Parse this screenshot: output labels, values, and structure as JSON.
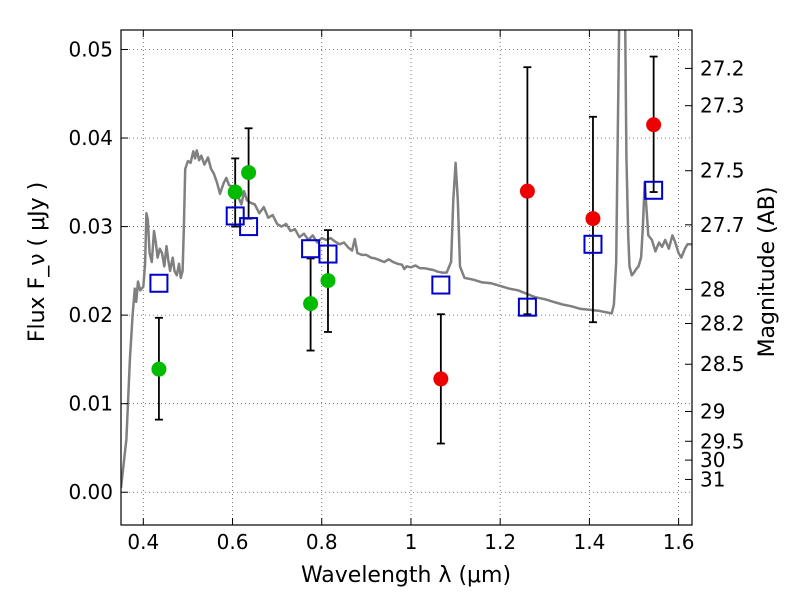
{
  "chart_data": {
    "type": "scatter",
    "xlabel": "Wavelength  λ (μm)",
    "ylabel": "Flux  F_ν  ( μJy )",
    "ylabel_right": "Magnitude (AB)",
    "xlim": [
      0.35,
      1.63
    ],
    "ylim": [
      -0.0037,
      0.0522
    ],
    "grid": true,
    "x_ticks": [
      {
        "value": 0.4,
        "label": "0.4"
      },
      {
        "value": 0.6,
        "label": "0.6"
      },
      {
        "value": 0.8,
        "label": "0.8"
      },
      {
        "value": 1.0,
        "label": "1"
      },
      {
        "value": 1.2,
        "label": "1.2"
      },
      {
        "value": 1.4,
        "label": "1.4"
      },
      {
        "value": 1.6,
        "label": "1.6"
      }
    ],
    "y_ticks": [
      {
        "value": 0.0,
        "label": "0.00"
      },
      {
        "value": 0.01,
        "label": "0.01"
      },
      {
        "value": 0.02,
        "label": "0.02"
      },
      {
        "value": 0.03,
        "label": "0.03"
      },
      {
        "value": 0.04,
        "label": "0.04"
      },
      {
        "value": 0.05,
        "label": "0.05"
      }
    ],
    "right_ticks": [
      {
        "value": 27.2,
        "label": "27.2"
      },
      {
        "value": 27.3,
        "label": "27.3"
      },
      {
        "value": 27.5,
        "label": "27.5"
      },
      {
        "value": 27.7,
        "label": "27.7"
      },
      {
        "value": 28.0,
        "label": "28"
      },
      {
        "value": 28.2,
        "label": "28.2"
      },
      {
        "value": 28.5,
        "label": "28.5"
      },
      {
        "value": 29.0,
        "label": "29"
      },
      {
        "value": 29.5,
        "label": "29.5"
      },
      {
        "value": 30.0,
        "label": "30"
      },
      {
        "value": 31.0,
        "label": "31"
      }
    ],
    "photometry": [
      {
        "x": 0.435,
        "y": 0.0139,
        "err_low": 0.0082,
        "err_high": 0.0197,
        "color": "#00bb00"
      },
      {
        "x": 0.606,
        "y": 0.0339,
        "err_low": 0.03,
        "err_high": 0.0377,
        "color": "#00bb00"
      },
      {
        "x": 0.636,
        "y": 0.0361,
        "err_low": 0.0309,
        "err_high": 0.0411,
        "color": "#00bb00"
      },
      {
        "x": 0.775,
        "y": 0.0213,
        "err_low": 0.016,
        "err_high": 0.0264,
        "color": "#00bb00"
      },
      {
        "x": 0.814,
        "y": 0.0239,
        "err_low": 0.0181,
        "err_high": 0.0296,
        "color": "#00bb00"
      },
      {
        "x": 1.067,
        "y": 0.0128,
        "err_low": 0.0055,
        "err_high": 0.0201,
        "color": "#ee0000"
      },
      {
        "x": 1.261,
        "y": 0.034,
        "err_low": 0.0201,
        "err_high": 0.048,
        "color": "#ee0000"
      },
      {
        "x": 1.408,
        "y": 0.0309,
        "err_low": 0.0192,
        "err_high": 0.0424,
        "color": "#ee0000"
      },
      {
        "x": 1.544,
        "y": 0.0415,
        "err_low": 0.0339,
        "err_high": 0.0492,
        "color": "#ee0000"
      }
    ],
    "model_points": [
      {
        "x": 0.435,
        "y": 0.0236
      },
      {
        "x": 0.606,
        "y": 0.0312
      },
      {
        "x": 0.636,
        "y": 0.03
      },
      {
        "x": 0.775,
        "y": 0.0275
      },
      {
        "x": 0.814,
        "y": 0.0269
      },
      {
        "x": 1.067,
        "y": 0.0234
      },
      {
        "x": 1.261,
        "y": 0.0209
      },
      {
        "x": 1.408,
        "y": 0.028
      },
      {
        "x": 1.544,
        "y": 0.0341
      }
    ],
    "sed_curve": [
      [
        0.35,
        0.0005
      ],
      [
        0.362,
        0.006
      ],
      [
        0.37,
        0.015
      ],
      [
        0.376,
        0.02
      ],
      [
        0.381,
        0.023
      ],
      [
        0.384,
        0.0215
      ],
      [
        0.388,
        0.0238
      ],
      [
        0.393,
        0.0228
      ],
      [
        0.4,
        0.0232
      ],
      [
        0.404,
        0.0258
      ],
      [
        0.407,
        0.0315
      ],
      [
        0.41,
        0.0308
      ],
      [
        0.414,
        0.027
      ],
      [
        0.419,
        0.026
      ],
      [
        0.424,
        0.0295
      ],
      [
        0.428,
        0.0282
      ],
      [
        0.432,
        0.0265
      ],
      [
        0.437,
        0.0275
      ],
      [
        0.442,
        0.027
      ],
      [
        0.447,
        0.0255
      ],
      [
        0.452,
        0.0278
      ],
      [
        0.456,
        0.0262
      ],
      [
        0.46,
        0.025
      ],
      [
        0.466,
        0.0265
      ],
      [
        0.47,
        0.025
      ],
      [
        0.475,
        0.0245
      ],
      [
        0.48,
        0.0258
      ],
      [
        0.484,
        0.0242
      ],
      [
        0.488,
        0.025
      ],
      [
        0.491,
        0.03
      ],
      [
        0.494,
        0.0365
      ],
      [
        0.5,
        0.0374
      ],
      [
        0.506,
        0.0372
      ],
      [
        0.512,
        0.0385
      ],
      [
        0.516,
        0.0377
      ],
      [
        0.52,
        0.0386
      ],
      [
        0.525,
        0.0375
      ],
      [
        0.53,
        0.038
      ],
      [
        0.537,
        0.037
      ],
      [
        0.545,
        0.0378
      ],
      [
        0.552,
        0.0365
      ],
      [
        0.558,
        0.036
      ],
      [
        0.565,
        0.035
      ],
      [
        0.572,
        0.0337
      ],
      [
        0.58,
        0.0349
      ],
      [
        0.586,
        0.0355
      ],
      [
        0.592,
        0.0347
      ],
      [
        0.6,
        0.0345
      ],
      [
        0.61,
        0.0337
      ],
      [
        0.62,
        0.0325
      ],
      [
        0.626,
        0.034
      ],
      [
        0.632,
        0.033
      ],
      [
        0.64,
        0.0327
      ],
      [
        0.65,
        0.0325
      ],
      [
        0.66,
        0.0315
      ],
      [
        0.67,
        0.0322
      ],
      [
        0.68,
        0.031
      ],
      [
        0.69,
        0.0313
      ],
      [
        0.7,
        0.0303
      ],
      [
        0.71,
        0.03
      ],
      [
        0.72,
        0.0303
      ],
      [
        0.73,
        0.0295
      ],
      [
        0.74,
        0.0297
      ],
      [
        0.75,
        0.0288
      ],
      [
        0.76,
        0.0292
      ],
      [
        0.77,
        0.0285
      ],
      [
        0.78,
        0.029
      ],
      [
        0.79,
        0.0282
      ],
      [
        0.8,
        0.0287
      ],
      [
        0.81,
        0.0285
      ],
      [
        0.82,
        0.0287
      ],
      [
        0.83,
        0.0283
      ],
      [
        0.84,
        0.028
      ],
      [
        0.85,
        0.0282
      ],
      [
        0.86,
        0.0276
      ],
      [
        0.868,
        0.0273
      ],
      [
        0.874,
        0.0286
      ],
      [
        0.88,
        0.027
      ],
      [
        0.89,
        0.0268
      ],
      [
        0.9,
        0.0268
      ],
      [
        0.91,
        0.0265
      ],
      [
        0.92,
        0.0264
      ],
      [
        0.93,
        0.0262
      ],
      [
        0.94,
        0.026
      ],
      [
        0.95,
        0.0263
      ],
      [
        0.96,
        0.026
      ],
      [
        0.97,
        0.0258
      ],
      [
        0.98,
        0.0257
      ],
      [
        0.985,
        0.0252
      ],
      [
        0.99,
        0.0255
      ],
      [
        1.0,
        0.0254
      ],
      [
        1.01,
        0.0256
      ],
      [
        1.02,
        0.0253
      ],
      [
        1.03,
        0.0253
      ],
      [
        1.04,
        0.0252
      ],
      [
        1.05,
        0.0251
      ],
      [
        1.06,
        0.0249
      ],
      [
        1.07,
        0.0248
      ],
      [
        1.08,
        0.0248
      ],
      [
        1.09,
        0.026
      ],
      [
        1.095,
        0.033
      ],
      [
        1.1,
        0.0372
      ],
      [
        1.105,
        0.033
      ],
      [
        1.11,
        0.0255
      ],
      [
        1.12,
        0.0242
      ],
      [
        1.14,
        0.024
      ],
      [
        1.16,
        0.0237
      ],
      [
        1.18,
        0.0236
      ],
      [
        1.2,
        0.0233
      ],
      [
        1.22,
        0.023
      ],
      [
        1.24,
        0.0228
      ],
      [
        1.26,
        0.0224
      ],
      [
        1.28,
        0.022
      ],
      [
        1.3,
        0.0218
      ],
      [
        1.32,
        0.0215
      ],
      [
        1.34,
        0.0212
      ],
      [
        1.36,
        0.021
      ],
      [
        1.38,
        0.0207
      ],
      [
        1.4,
        0.0206
      ],
      [
        1.42,
        0.0205
      ],
      [
        1.44,
        0.0203
      ],
      [
        1.45,
        0.0202
      ],
      [
        1.455,
        0.0212
      ],
      [
        1.46,
        0.026
      ],
      [
        1.463,
        0.038
      ],
      [
        1.467,
        0.054
      ],
      [
        1.48,
        0.054
      ],
      [
        1.483,
        0.038
      ],
      [
        1.487,
        0.029
      ],
      [
        1.49,
        0.0255
      ],
      [
        1.495,
        0.0245
      ],
      [
        1.5,
        0.0248
      ],
      [
        1.505,
        0.0252
      ],
      [
        1.51,
        0.0255
      ],
      [
        1.516,
        0.0265
      ],
      [
        1.52,
        0.03
      ],
      [
        1.524,
        0.035
      ],
      [
        1.528,
        0.032
      ],
      [
        1.532,
        0.029
      ],
      [
        1.54,
        0.0285
      ],
      [
        1.548,
        0.0272
      ],
      [
        1.556,
        0.0282
      ],
      [
        1.563,
        0.0277
      ],
      [
        1.57,
        0.0285
      ],
      [
        1.578,
        0.0275
      ],
      [
        1.586,
        0.029
      ],
      [
        1.592,
        0.0283
      ],
      [
        1.6,
        0.027
      ],
      [
        1.606,
        0.0265
      ],
      [
        1.614,
        0.0275
      ],
      [
        1.62,
        0.028
      ],
      [
        1.63,
        0.028
      ]
    ],
    "colors": {
      "sed": "#808080",
      "model_square": "#0000cc",
      "errorbar": "#000000",
      "green_point": "#00bb00",
      "red_point": "#ee0000",
      "grid": "#555555"
    }
  }
}
